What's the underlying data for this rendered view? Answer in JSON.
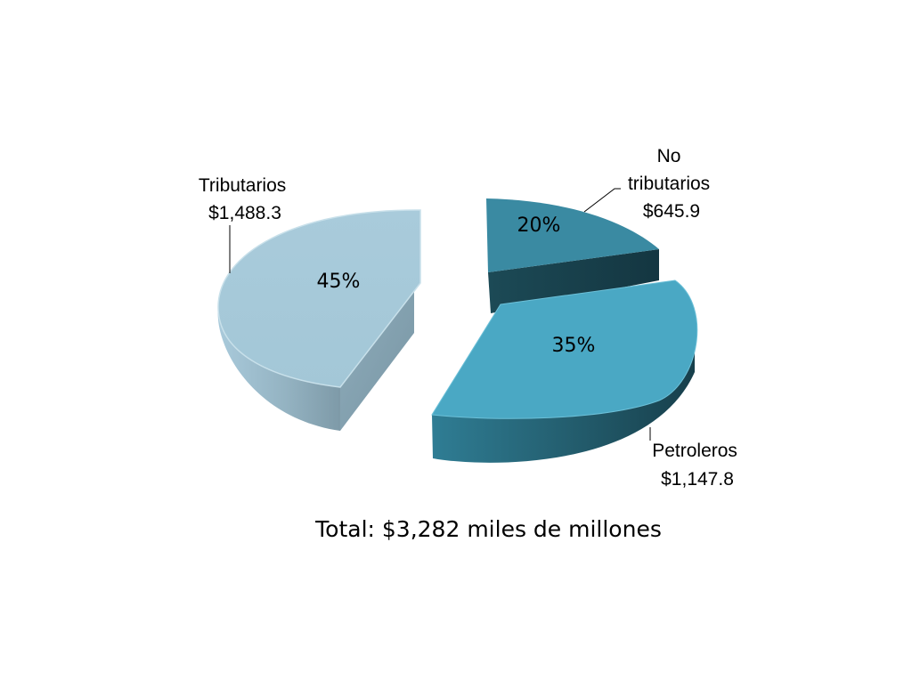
{
  "chart_data": {
    "type": "pie",
    "style": "3d-exploded",
    "slices": [
      {
        "key": "tributarios",
        "label_lines": [
          "Tributarios",
          "$1,488.3"
        ],
        "value": 1488.3,
        "percent_label": "45%",
        "colors": {
          "top": "#a7cbdb",
          "side_light": "#b4d6e5",
          "side_dark": "#8aa9b8"
        }
      },
      {
        "key": "no_tributarios",
        "label_lines": [
          "No",
          "tributarios",
          "$645.9"
        ],
        "value": 645.9,
        "percent_label": "20%",
        "colors": {
          "top": "#3a8aa2",
          "side_light": "#215868",
          "side_dark": "#153a45"
        }
      },
      {
        "key": "petroleros",
        "label_lines": [
          "Petroleros",
          "$1,147.8"
        ],
        "value": 1147.8,
        "percent_label": "35%",
        "colors": {
          "top": "#4aa8c4",
          "side_light": "#2e7d93",
          "side_dark": "#1d4f5d"
        }
      }
    ],
    "total_label": "Total: $3,282 miles de millones"
  }
}
